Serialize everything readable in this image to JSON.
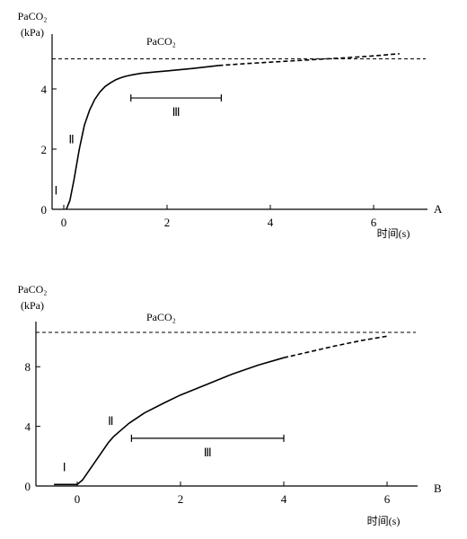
{
  "chart_data": [
    {
      "type": "line",
      "panel_label": "A",
      "ylabel_line1": "PaCO₂",
      "ylabel_line2": "(kPa)",
      "xlabel": "时间(s)",
      "reference_line": {
        "label": "PaCO₂",
        "y": 5.0,
        "style": "dashed"
      },
      "xlim": [
        -0.3,
        7.0
      ],
      "ylim": [
        0,
        5.8
      ],
      "x_ticks": [
        0,
        2,
        4,
        6
      ],
      "y_ticks": [
        0,
        2,
        4
      ],
      "series": [
        {
          "style": "solid",
          "x": [
            0.05,
            0.12,
            0.2,
            0.3,
            0.4,
            0.5,
            0.6,
            0.7,
            0.8,
            0.9,
            1.0,
            1.1,
            1.2,
            1.3,
            1.5,
            1.8,
            2.0,
            2.5,
            3.0
          ],
          "y": [
            0.0,
            0.3,
            1.0,
            2.0,
            2.8,
            3.3,
            3.65,
            3.9,
            4.08,
            4.2,
            4.3,
            4.37,
            4.42,
            4.46,
            4.52,
            4.57,
            4.6,
            4.68,
            4.78
          ]
        },
        {
          "style": "dashed",
          "x": [
            3.0,
            3.5,
            4.0,
            4.5,
            5.0,
            5.5,
            6.0,
            6.5
          ],
          "y": [
            4.78,
            4.84,
            4.89,
            4.94,
            4.99,
            5.04,
            5.1,
            5.17
          ]
        }
      ],
      "phases": [
        {
          "label": "Ⅰ",
          "x": -0.15,
          "y": 0.5
        },
        {
          "label": "Ⅱ",
          "x": 0.15,
          "y": 2.2
        }
      ],
      "bracket": {
        "label": "Ⅲ",
        "x_start": 1.3,
        "x_end": 3.05,
        "y": 3.7
      }
    },
    {
      "type": "line",
      "panel_label": "B",
      "ylabel_line1": "PaCO₂",
      "ylabel_line2": "(kPa)",
      "xlabel": "时间(s)",
      "reference_line": {
        "label": "PaCO₂",
        "y": 10.3,
        "style": "dashed"
      },
      "xlim": [
        -0.45,
        6.3
      ],
      "ylim": [
        0,
        11.8
      ],
      "x_ticks": [
        0,
        2,
        4,
        6
      ],
      "y_ticks": [
        0,
        4,
        8
      ],
      "series": [
        {
          "style": "solid",
          "x": [
            -0.45,
            0.0,
            0.1,
            0.3,
            0.5,
            0.6,
            0.7,
            0.8,
            1.0,
            1.3,
            1.7,
            2.0,
            2.5,
            3.0,
            3.5,
            4.0
          ],
          "y": [
            0.1,
            0.1,
            0.4,
            1.4,
            2.4,
            2.9,
            3.3,
            3.6,
            4.2,
            4.9,
            5.6,
            6.1,
            6.8,
            7.5,
            8.1,
            8.6
          ],
          "start_segment": "flat"
        },
        {
          "style": "dashed",
          "x": [
            4.0,
            4.5,
            5.0,
            5.5,
            6.0
          ],
          "y": [
            8.6,
            9.0,
            9.4,
            9.75,
            10.05
          ]
        }
      ],
      "phases": [
        {
          "label": "Ⅰ",
          "x": -0.25,
          "y": 1.0
        },
        {
          "label": "Ⅱ",
          "x": 0.65,
          "y": 4.1
        }
      ],
      "bracket": {
        "label": "Ⅲ",
        "x_start": 1.05,
        "x_end": 4.0,
        "y": 3.2
      }
    }
  ]
}
